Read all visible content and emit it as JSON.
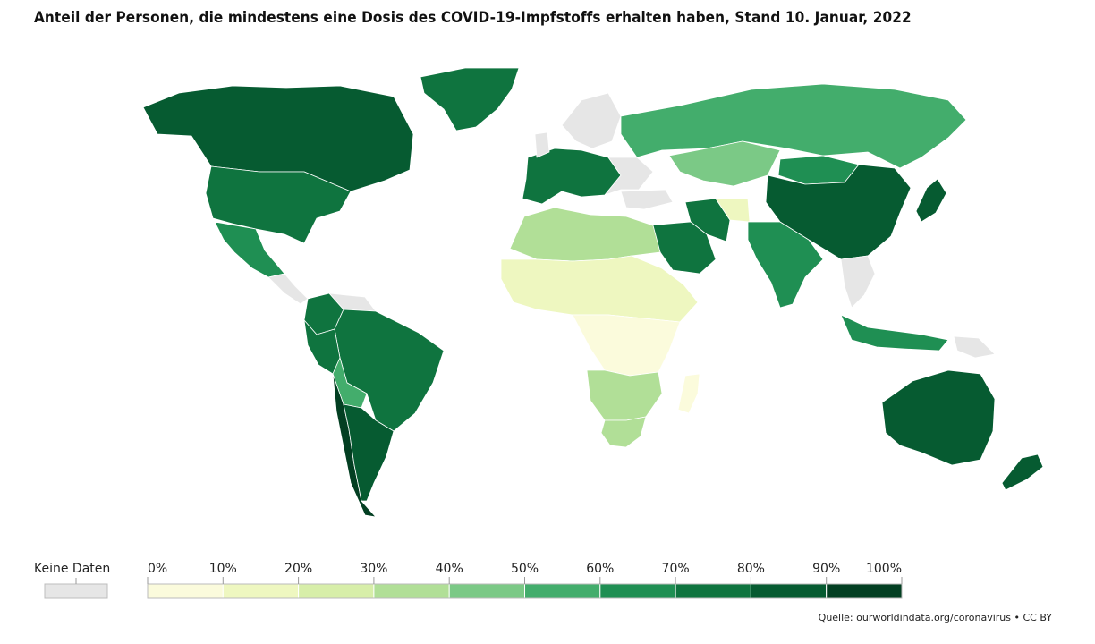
{
  "title": "Anteil der Personen, die mindestens eine Dosis des COVID-19-Impfstoffs erhalten haben, Stand 10. Januar, 2022",
  "legend": {
    "no_data_label": "Keine Daten",
    "no_data_color": "#e6e6e6",
    "ticks": [
      "0%",
      "10%",
      "20%",
      "30%",
      "40%",
      "50%",
      "60%",
      "70%",
      "80%",
      "90%",
      "100%"
    ],
    "bins": [
      {
        "from": 0,
        "to": 10,
        "color": "#fbfbdc"
      },
      {
        "from": 10,
        "to": 20,
        "color": "#eef7c0"
      },
      {
        "from": 20,
        "to": 30,
        "color": "#d7eea9"
      },
      {
        "from": 30,
        "to": 40,
        "color": "#b1df97"
      },
      {
        "from": 40,
        "to": 50,
        "color": "#7bc986"
      },
      {
        "from": 50,
        "to": 60,
        "color": "#43ad6c"
      },
      {
        "from": 60,
        "to": 70,
        "color": "#1f8f53"
      },
      {
        "from": 70,
        "to": 80,
        "color": "#0f743f"
      },
      {
        "from": 80,
        "to": 90,
        "color": "#065b31"
      },
      {
        "from": 90,
        "to": 100,
        "color": "#033f22"
      }
    ]
  },
  "source": "Quelle: ourworldindata.org/coronavirus • CC BY",
  "chart_data": {
    "type": "choropleth",
    "title": "Anteil der Personen, die mindestens eine Dosis des COVID-19-Impfstoffs erhalten haben, Stand 10. Januar, 2022",
    "unit": "%",
    "regions": [
      {
        "name": "Kanada",
        "value": 85
      },
      {
        "name": "USA",
        "value": 75
      },
      {
        "name": "Mexiko",
        "value": 65
      },
      {
        "name": "Grönland",
        "value": 72
      },
      {
        "name": "Brasilien",
        "value": 78
      },
      {
        "name": "Argentinien",
        "value": 85
      },
      {
        "name": "Chile",
        "value": 90
      },
      {
        "name": "Peru",
        "value": 78
      },
      {
        "name": "Kolumbien",
        "value": 75
      },
      {
        "name": "Bolivien",
        "value": 55
      },
      {
        "name": "Russland",
        "value": 52
      },
      {
        "name": "China",
        "value": 87
      },
      {
        "name": "Indien",
        "value": 62
      },
      {
        "name": "Kasachstan",
        "value": 45
      },
      {
        "name": "Mongolei",
        "value": 68
      },
      {
        "name": "Saudi-Arabien",
        "value": 72
      },
      {
        "name": "Iran",
        "value": 70
      },
      {
        "name": "Afghanistan",
        "value": 10
      },
      {
        "name": "Australien",
        "value": 80
      },
      {
        "name": "Neuseeland",
        "value": 80
      },
      {
        "name": "Indonesien",
        "value": 63
      },
      {
        "name": "Japan",
        "value": 80
      },
      {
        "name": "Westeuropa",
        "value": 78
      },
      {
        "name": "Nordafrika",
        "value": 30
      },
      {
        "name": "Sahel",
        "value": 10
      },
      {
        "name": "Zentralafrika",
        "value": 5
      },
      {
        "name": "Südliches Afrika",
        "value": 30
      },
      {
        "name": "Südafrika",
        "value": 32
      },
      {
        "name": "Madagaskar",
        "value": 3
      }
    ]
  }
}
